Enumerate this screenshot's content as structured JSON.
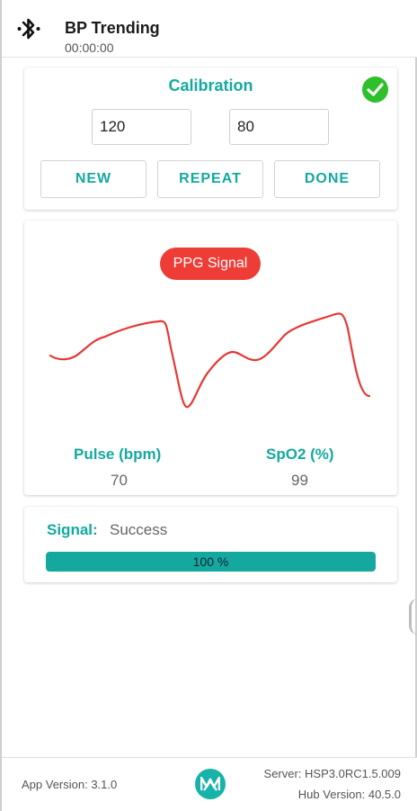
{
  "header": {
    "title": "BP Trending",
    "timer": "00:00:00",
    "bluetooth_icon": "bluetooth-icon"
  },
  "calibration": {
    "title": "Calibration",
    "status_icon": "check-circle-icon",
    "systolic_value": "120",
    "diastolic_value": "80",
    "buttons": {
      "new": "NEW",
      "repeat": "REPEAT",
      "done": "DONE"
    }
  },
  "ppg": {
    "badge": "PPG Signal",
    "pulse_label": "Pulse (bpm)",
    "pulse_value": "70",
    "spo2_label": "SpO2 (%)",
    "spo2_value": "99"
  },
  "signal": {
    "label": "Signal:",
    "status": "Success",
    "progress_text": "100 %",
    "progress": 1.0
  },
  "footer": {
    "app_version": "App Version: 3.1.0",
    "server": "Server: HSP3.0RC1.5.009",
    "hub_version": "Hub Version: 40.5.0",
    "logo_icon": "maxim-logo-icon"
  },
  "colors": {
    "accent": "#14a9a0",
    "badge_red": "#ee3d36",
    "wave_red": "#e53935",
    "success_green": "#2ec02b"
  }
}
